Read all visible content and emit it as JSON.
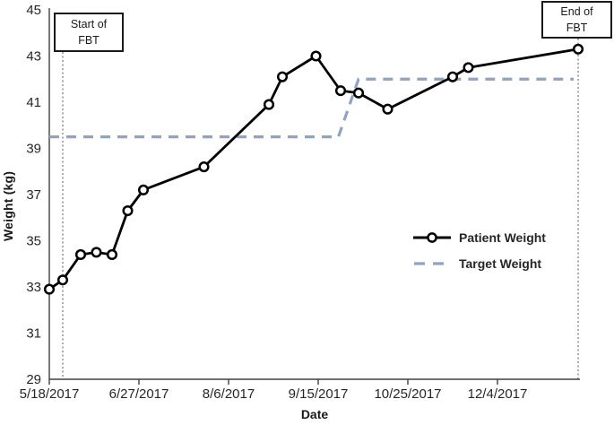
{
  "colors": {
    "patient_line": "#000000",
    "target_line": "#8FA3C6",
    "axis": "#404040",
    "text": "#262626",
    "annotation_line": "#595959",
    "marker_fill": "#ffffff"
  },
  "chart_data": {
    "type": "line",
    "title": "",
    "xlabel": "Date",
    "ylabel": "Weight (kg)",
    "x_axis": {
      "tick_labels": [
        "5/18/2017",
        "6/27/2017",
        "8/6/2017",
        "9/15/2017",
        "10/25/2017",
        "12/4/2017"
      ],
      "tick_days": [
        0,
        40,
        80,
        120,
        160,
        200
      ],
      "range_days": [
        0,
        237
      ],
      "units": "days since 5/18/2017"
    },
    "y_axis": {
      "ticks": [
        29,
        31,
        33,
        35,
        37,
        39,
        41,
        43,
        45
      ],
      "range": [
        29,
        45
      ]
    },
    "grid": "off",
    "legend_position": "center-right",
    "series": [
      {
        "name": "Patient Weight",
        "style": "solid-line-circle-markers",
        "points": [
          {
            "day": 0,
            "approx_date": "5/18/2017",
            "kg": 32.9
          },
          {
            "day": 6,
            "approx_date": "5/24/2017",
            "kg": 33.3
          },
          {
            "day": 14,
            "approx_date": "6/1/2017",
            "kg": 34.4
          },
          {
            "day": 21,
            "approx_date": "6/8/2017",
            "kg": 34.5
          },
          {
            "day": 28,
            "approx_date": "6/15/2017",
            "kg": 34.4
          },
          {
            "day": 35,
            "approx_date": "6/22/2017",
            "kg": 36.3
          },
          {
            "day": 42,
            "approx_date": "6/29/2017",
            "kg": 37.2
          },
          {
            "day": 69,
            "approx_date": "7/26/2017",
            "kg": 38.2
          },
          {
            "day": 98,
            "approx_date": "8/24/2017",
            "kg": 40.9
          },
          {
            "day": 104,
            "approx_date": "8/30/2017",
            "kg": 42.1
          },
          {
            "day": 119,
            "approx_date": "9/14/2017",
            "kg": 43.0
          },
          {
            "day": 130,
            "approx_date": "9/25/2017",
            "kg": 41.5
          },
          {
            "day": 138,
            "approx_date": "10/3/2017",
            "kg": 41.4
          },
          {
            "day": 151,
            "approx_date": "10/16/2017",
            "kg": 40.7
          },
          {
            "day": 180,
            "approx_date": "11/14/2017",
            "kg": 42.1
          },
          {
            "day": 187,
            "approx_date": "11/21/2017",
            "kg": 42.5
          },
          {
            "day": 236,
            "approx_date": "1/9/2018",
            "kg": 43.3
          }
        ]
      },
      {
        "name": "Target Weight",
        "style": "dashed-line",
        "points": [
          {
            "day": 0,
            "kg": 39.5
          },
          {
            "day": 129,
            "kg": 39.5
          },
          {
            "day": 138,
            "kg": 42.0
          },
          {
            "day": 234,
            "kg": 42.0
          }
        ]
      }
    ],
    "annotations": [
      {
        "label": "Start of FBT",
        "line_day": 6
      },
      {
        "label": "End of FBT",
        "line_day": 236
      }
    ]
  },
  "legend": {
    "patient_label": "Patient Weight",
    "target_label": "Target Weight"
  }
}
